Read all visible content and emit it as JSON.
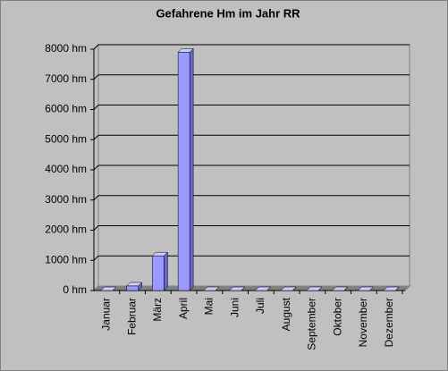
{
  "chart_data": {
    "type": "bar",
    "title": "Gefahrene Hm im Jahr RR",
    "categories": [
      "Januar",
      "Februar",
      "März",
      "April",
      "Mai",
      "Juni",
      "Juli",
      "August",
      "September",
      "Oktober",
      "November",
      "Dezember"
    ],
    "values": [
      0,
      150,
      1150,
      7900,
      0,
      0,
      0,
      0,
      0,
      0,
      0,
      0
    ],
    "color": "#9999ff",
    "ylim": [
      0,
      8000
    ],
    "yticks": [
      {
        "value": 0,
        "label": "0 hm"
      },
      {
        "value": 1000,
        "label": "1000 hm"
      },
      {
        "value": 2000,
        "label": "2000 hm"
      },
      {
        "value": 3000,
        "label": "3000 hm"
      },
      {
        "value": 4000,
        "label": "4000 hm"
      },
      {
        "value": 5000,
        "label": "5000 hm"
      },
      {
        "value": 6000,
        "label": "6000 hm"
      },
      {
        "value": 7000,
        "label": "7000 hm"
      },
      {
        "value": 8000,
        "label": "8000 hm"
      }
    ],
    "grid": true
  }
}
